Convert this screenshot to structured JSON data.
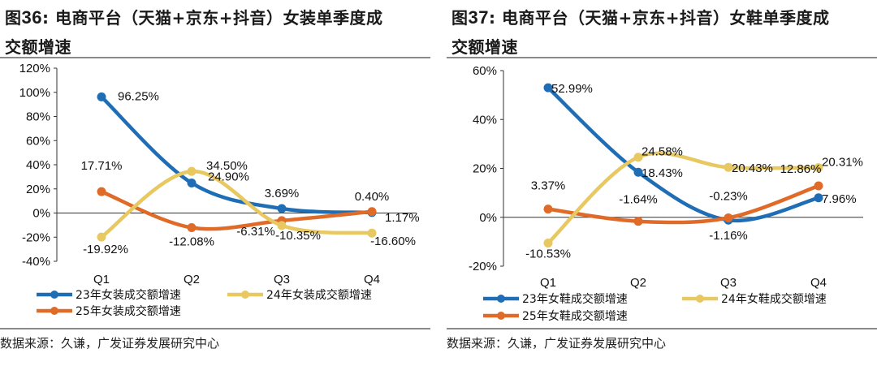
{
  "source_text": "数据来源：久谦，广发证券发展研究中心",
  "charts": [
    {
      "fig_no": "36",
      "title_line1": "电商平台（天猫+京东+抖音）女装单季度成",
      "title_line2": "交额增速",
      "colors": [
        "#1f6eb5",
        "#e8c860",
        "#e06a28"
      ]
    },
    {
      "fig_no": "37",
      "title_line1": "电商平台（天猫+京东+抖音）女鞋单季度成",
      "title_line2": "交额增速",
      "colors": [
        "#1f6eb5",
        "#e8c860",
        "#e06a28"
      ]
    }
  ],
  "chart_data": [
    {
      "type": "line",
      "title": "图36：电商平台（天猫+京东+抖音）女装单季度成交额增速",
      "categories": [
        "Q1",
        "Q2",
        "Q3",
        "Q4"
      ],
      "ylim": [
        -40,
        120
      ],
      "yticks": [
        -40,
        -20,
        0,
        20,
        40,
        60,
        80,
        100,
        120
      ],
      "ytick_labels": [
        "-40%",
        "-20%",
        "0%",
        "20%",
        "40%",
        "60%",
        "80%",
        "100%",
        "120%"
      ],
      "series": [
        {
          "name": "23年女装成交额增速",
          "values": [
            96.25,
            24.9,
            3.69,
            0.4
          ],
          "labels": [
            "96.25%",
            "24.90%",
            "3.69%",
            "0.40%"
          ]
        },
        {
          "name": "24年女装成交额增速",
          "values": [
            -19.92,
            34.5,
            -10.35,
            -16.6
          ],
          "labels": [
            "-19.92%",
            "34.50%",
            "-10.35%",
            "-16.60%"
          ]
        },
        {
          "name": "25年女装成交额增速",
          "values": [
            17.71,
            -12.08,
            -6.31,
            1.17
          ],
          "labels": [
            "17.71%",
            "-12.08%",
            "-6.31%",
            "1.17%"
          ]
        }
      ]
    },
    {
      "type": "line",
      "title": "图37：电商平台（天猫+京东+抖音）女鞋单季度成交额增速",
      "categories": [
        "Q1",
        "Q2",
        "Q3",
        "Q4"
      ],
      "ylim": [
        -20,
        60
      ],
      "yticks": [
        -20,
        0,
        20,
        40,
        60
      ],
      "ytick_labels": [
        "-20%",
        "0%",
        "20%",
        "40%",
        "60%"
      ],
      "series": [
        {
          "name": "23年女鞋成交额增速",
          "values": [
            52.99,
            18.43,
            -1.16,
            7.96
          ],
          "labels": [
            "52.99%",
            "18.43%",
            "-1.16%",
            "7.96%"
          ]
        },
        {
          "name": "24年女鞋成交额增速",
          "values": [
            -10.53,
            24.58,
            20.43,
            20.31
          ],
          "labels": [
            "-10.53%",
            "24.58%",
            "20.43%",
            "20.31%"
          ]
        },
        {
          "name": "25年女鞋成交额增速",
          "values": [
            3.37,
            -1.64,
            -0.23,
            12.86
          ],
          "labels": [
            "3.37%",
            "-1.64%",
            "-0.23%",
            "12.86%"
          ]
        }
      ]
    }
  ]
}
